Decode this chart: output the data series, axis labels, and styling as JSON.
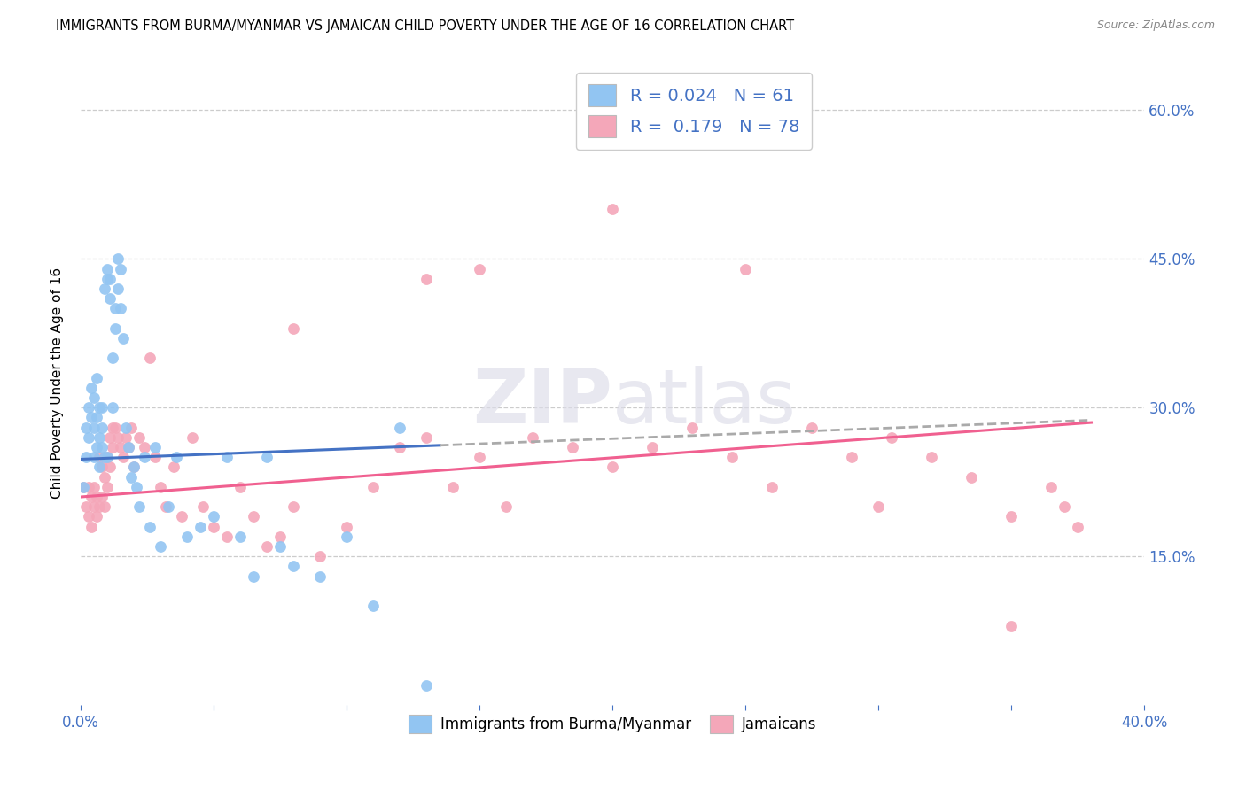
{
  "title": "IMMIGRANTS FROM BURMA/MYANMAR VS JAMAICAN CHILD POVERTY UNDER THE AGE OF 16 CORRELATION CHART",
  "source": "Source: ZipAtlas.com",
  "ylabel": "Child Poverty Under the Age of 16",
  "xlim": [
    0.0,
    0.4
  ],
  "ylim": [
    0.0,
    0.65
  ],
  "xtick_positions": [
    0.0,
    0.05,
    0.1,
    0.15,
    0.2,
    0.25,
    0.3,
    0.35,
    0.4
  ],
  "xticklabels": [
    "0.0%",
    "",
    "",
    "",
    "",
    "",
    "",
    "",
    "40.0%"
  ],
  "ytick_positions": [
    0.0,
    0.15,
    0.3,
    0.45,
    0.6
  ],
  "ytick_labels_right": [
    "",
    "15.0%",
    "30.0%",
    "45.0%",
    "60.0%"
  ],
  "blue_color": "#92C5F2",
  "pink_color": "#F4A7B9",
  "blue_line_color": "#4472C4",
  "pink_line_color": "#F06090",
  "dashed_line_color": "#AAAAAA",
  "R_blue": 0.024,
  "N_blue": 61,
  "R_pink": 0.179,
  "N_pink": 78,
  "legend_text_color": "#4472C4",
  "blue_line_x0": 0.0,
  "blue_line_x1": 0.135,
  "blue_line_y0": 0.248,
  "blue_line_y1": 0.262,
  "pink_line_x0": 0.0,
  "pink_line_x1": 0.38,
  "pink_line_y0": 0.21,
  "pink_line_y1": 0.285,
  "dashed_line_x0": 0.135,
  "dashed_line_x1": 0.38,
  "blue_scatter_x": [
    0.001,
    0.002,
    0.002,
    0.003,
    0.003,
    0.004,
    0.004,
    0.005,
    0.005,
    0.005,
    0.006,
    0.006,
    0.006,
    0.007,
    0.007,
    0.007,
    0.008,
    0.008,
    0.008,
    0.009,
    0.009,
    0.01,
    0.01,
    0.01,
    0.011,
    0.011,
    0.012,
    0.012,
    0.013,
    0.013,
    0.014,
    0.014,
    0.015,
    0.015,
    0.016,
    0.017,
    0.018,
    0.019,
    0.02,
    0.021,
    0.022,
    0.024,
    0.026,
    0.028,
    0.03,
    0.033,
    0.036,
    0.04,
    0.045,
    0.05,
    0.055,
    0.06,
    0.065,
    0.07,
    0.075,
    0.08,
    0.09,
    0.1,
    0.11,
    0.12,
    0.13
  ],
  "blue_scatter_y": [
    0.22,
    0.25,
    0.28,
    0.27,
    0.3,
    0.29,
    0.32,
    0.25,
    0.28,
    0.31,
    0.26,
    0.29,
    0.33,
    0.27,
    0.3,
    0.24,
    0.26,
    0.3,
    0.28,
    0.25,
    0.42,
    0.44,
    0.43,
    0.25,
    0.43,
    0.41,
    0.3,
    0.35,
    0.38,
    0.4,
    0.42,
    0.45,
    0.4,
    0.44,
    0.37,
    0.28,
    0.26,
    0.23,
    0.24,
    0.22,
    0.2,
    0.25,
    0.18,
    0.26,
    0.16,
    0.2,
    0.25,
    0.17,
    0.18,
    0.19,
    0.25,
    0.17,
    0.13,
    0.25,
    0.16,
    0.14,
    0.13,
    0.17,
    0.1,
    0.28,
    0.02
  ],
  "pink_scatter_x": [
    0.001,
    0.002,
    0.003,
    0.003,
    0.004,
    0.004,
    0.005,
    0.005,
    0.006,
    0.006,
    0.007,
    0.007,
    0.008,
    0.008,
    0.009,
    0.009,
    0.01,
    0.01,
    0.011,
    0.011,
    0.012,
    0.012,
    0.013,
    0.014,
    0.015,
    0.016,
    0.017,
    0.018,
    0.019,
    0.02,
    0.022,
    0.024,
    0.026,
    0.028,
    0.03,
    0.032,
    0.035,
    0.038,
    0.042,
    0.046,
    0.05,
    0.055,
    0.06,
    0.065,
    0.07,
    0.075,
    0.08,
    0.09,
    0.1,
    0.11,
    0.12,
    0.13,
    0.14,
    0.15,
    0.16,
    0.17,
    0.185,
    0.2,
    0.215,
    0.23,
    0.245,
    0.26,
    0.275,
    0.29,
    0.305,
    0.32,
    0.335,
    0.35,
    0.365,
    0.375,
    0.13,
    0.15,
    0.08,
    0.2,
    0.25,
    0.3,
    0.35,
    0.37
  ],
  "pink_scatter_y": [
    0.22,
    0.2,
    0.19,
    0.22,
    0.21,
    0.18,
    0.22,
    0.2,
    0.21,
    0.19,
    0.25,
    0.2,
    0.24,
    0.21,
    0.23,
    0.2,
    0.25,
    0.22,
    0.27,
    0.24,
    0.28,
    0.26,
    0.28,
    0.27,
    0.26,
    0.25,
    0.27,
    0.26,
    0.28,
    0.24,
    0.27,
    0.26,
    0.35,
    0.25,
    0.22,
    0.2,
    0.24,
    0.19,
    0.27,
    0.2,
    0.18,
    0.17,
    0.22,
    0.19,
    0.16,
    0.17,
    0.2,
    0.15,
    0.18,
    0.22,
    0.26,
    0.27,
    0.22,
    0.25,
    0.2,
    0.27,
    0.26,
    0.24,
    0.26,
    0.28,
    0.25,
    0.22,
    0.28,
    0.25,
    0.27,
    0.25,
    0.23,
    0.19,
    0.22,
    0.18,
    0.43,
    0.44,
    0.38,
    0.5,
    0.44,
    0.2,
    0.08,
    0.2
  ]
}
